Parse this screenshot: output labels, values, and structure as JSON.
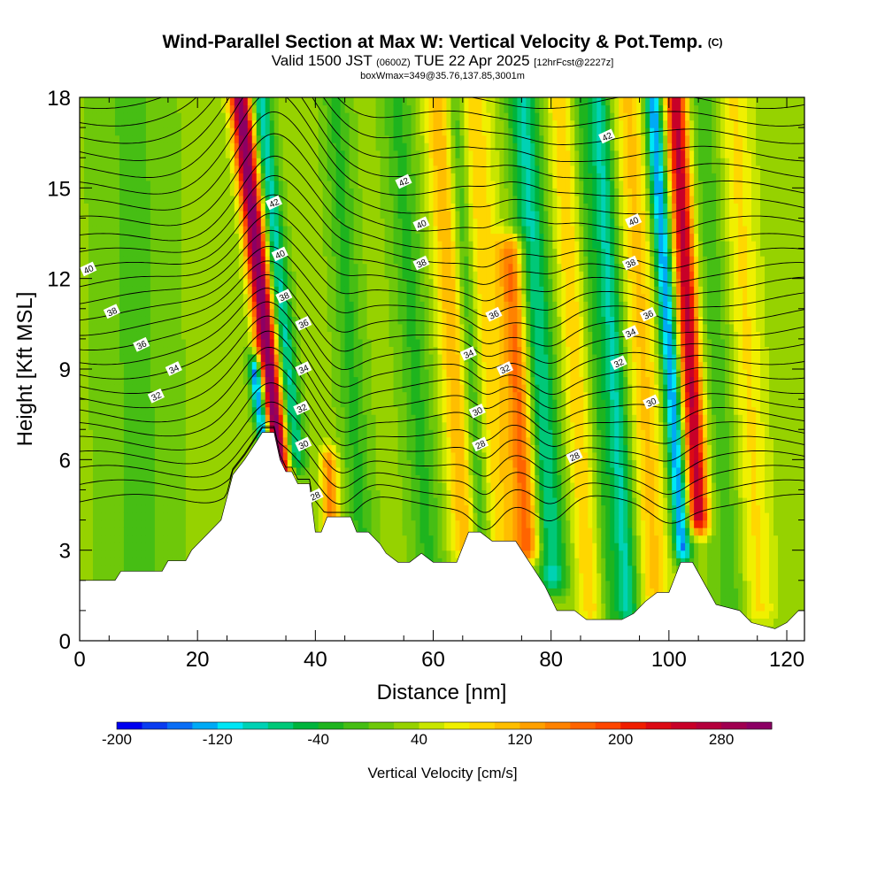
{
  "header": {
    "title": "Wind-Parallel Section at Max W: Vertical Velocity & Pot.Temp.",
    "copyright": "(C)",
    "valid_prefix": "Valid 1500 JST",
    "valid_utc": "(0600Z)",
    "valid_date": "TUE 22 Apr 2025",
    "forecast_info": "[12hrFcst@2227z]",
    "box_info": "boxWmax=349@35.76,137.85,3001m"
  },
  "colors": {
    "background": "#ffffff",
    "terrain": "#ffffff",
    "contour": "#000000"
  },
  "chart_data": {
    "type": "heatmap",
    "xlabel": "Distance [nm]",
    "ylabel": "Height [Kft MSL]",
    "xlim": [
      0,
      123
    ],
    "ylim": [
      0,
      18
    ],
    "x_ticks": [
      "0",
      "20",
      "40",
      "60",
      "80",
      "100",
      "120"
    ],
    "y_ticks": [
      "0",
      "3",
      "6",
      "9",
      "12",
      "15",
      "18"
    ],
    "colorbar": {
      "title": "Vertical Velocity [cm/s]",
      "tick_labels": [
        "-200",
        "-120",
        "-40",
        "40",
        "120",
        "200",
        "280"
      ],
      "levels": [
        -200,
        -180,
        -160,
        -140,
        -120,
        -100,
        -80,
        -60,
        -40,
        -20,
        0,
        20,
        40,
        60,
        80,
        100,
        120,
        140,
        160,
        180,
        200,
        220,
        240,
        260,
        280,
        300,
        320
      ],
      "colors": [
        "#0000f0",
        "#0a3cf0",
        "#0a6ef5",
        "#00aaf5",
        "#00e6f5",
        "#00d2b4",
        "#00c878",
        "#00b43c",
        "#1eb41e",
        "#46be14",
        "#6ec80a",
        "#96d200",
        "#c8e600",
        "#f0f000",
        "#ffd700",
        "#ffbe00",
        "#ffa000",
        "#ff8200",
        "#ff6400",
        "#ff4600",
        "#f01e00",
        "#dc0a14",
        "#c80028",
        "#b4003c",
        "#a00050",
        "#8c0064"
      ]
    },
    "terrain_height_kft": [
      [
        0,
        2
      ],
      [
        6,
        2
      ],
      [
        7,
        2.3
      ],
      [
        14,
        2.3
      ],
      [
        15,
        2.65
      ],
      [
        18,
        2.65
      ],
      [
        19,
        3
      ],
      [
        24,
        4
      ],
      [
        26,
        5.5
      ],
      [
        28,
        6
      ],
      [
        30,
        6.6
      ],
      [
        31,
        6.9
      ],
      [
        33,
        6.9
      ],
      [
        34,
        6
      ],
      [
        35,
        5.6
      ],
      [
        36,
        5.6
      ],
      [
        37,
        5.2
      ],
      [
        39,
        5.2
      ],
      [
        40,
        3.6
      ],
      [
        41,
        3.6
      ],
      [
        42,
        4.1
      ],
      [
        46,
        4.1
      ],
      [
        47,
        3.6
      ],
      [
        49,
        3.6
      ],
      [
        51,
        3.2
      ],
      [
        52,
        2.9
      ],
      [
        54,
        2.6
      ],
      [
        56,
        2.6
      ],
      [
        58,
        2.9
      ],
      [
        60,
        2.6
      ],
      [
        64,
        2.6
      ],
      [
        66,
        3.6
      ],
      [
        68,
        3.6
      ],
      [
        70,
        3.3
      ],
      [
        74,
        3.3
      ],
      [
        76,
        2.7
      ],
      [
        79,
        1.8
      ],
      [
        81,
        1
      ],
      [
        84,
        1
      ],
      [
        86,
        0.7
      ],
      [
        92,
        0.7
      ],
      [
        94,
        0.9
      ],
      [
        96,
        1.3
      ],
      [
        98,
        1.6
      ],
      [
        100,
        1.6
      ],
      [
        102,
        2.6
      ],
      [
        104,
        2.6
      ],
      [
        106,
        1.9
      ],
      [
        108,
        1.2
      ],
      [
        112,
        1
      ],
      [
        114,
        0.6
      ],
      [
        118,
        0.4
      ],
      [
        120,
        0.6
      ],
      [
        122,
        1
      ],
      [
        123,
        1
      ]
    ],
    "vertical_velocity_features": [
      {
        "x_center": 33.8,
        "tilt": 0.55,
        "width": 1.8,
        "value": 300,
        "y_min": 3,
        "y_max": 18
      },
      {
        "x_center": 31.8,
        "tilt": 0.65,
        "width": 1.1,
        "value": -220,
        "y_min": 6.3,
        "y_max": 9
      },
      {
        "x_center": 36.7,
        "tilt": 0.5,
        "width": 1.6,
        "value": -120,
        "y_min": 6,
        "y_max": 18
      },
      {
        "x_center": 42.3,
        "tilt": 0.2,
        "width": 1.5,
        "value": 120,
        "y_min": 3.5,
        "y_max": 6
      },
      {
        "x_center": 47,
        "tilt": 0.3,
        "width": 2.2,
        "value": -50,
        "y_min": 2.5,
        "y_max": 18
      },
      {
        "x_center": 58,
        "tilt": 0.35,
        "width": 2.5,
        "value": -50,
        "y_min": 2.5,
        "y_max": 18
      },
      {
        "x_center": 64.5,
        "tilt": 0.32,
        "width": 2.4,
        "value": 90,
        "y_min": 3,
        "y_max": 18
      },
      {
        "x_center": 67.3,
        "tilt": 0.3,
        "width": 1.5,
        "value": -70,
        "y_min": 3,
        "y_max": 18
      },
      {
        "x_center": 71,
        "tilt": 0.36,
        "width": 3,
        "value": 70,
        "y_min": 3,
        "y_max": 18
      },
      {
        "x_center": 75.3,
        "tilt": 0.3,
        "width": 2.2,
        "value": 140,
        "y_min": 3,
        "y_max": 13
      },
      {
        "x_center": 79,
        "tilt": 0.32,
        "width": 2.5,
        "value": -110,
        "y_min": 2,
        "y_max": 18
      },
      {
        "x_center": 85,
        "tilt": 0.3,
        "width": 2.2,
        "value": 70,
        "y_min": 1,
        "y_max": 18
      },
      {
        "x_center": 88.5,
        "tilt": 0.3,
        "width": 1.5,
        "value": -40,
        "y_min": 1,
        "y_max": 18
      },
      {
        "x_center": 91.5,
        "tilt": 0.3,
        "width": 2,
        "value": -110,
        "y_min": 1,
        "y_max": 18
      },
      {
        "x_center": 96.5,
        "tilt": 0.28,
        "width": 2.6,
        "value": 80,
        "y_min": 1,
        "y_max": 18
      },
      {
        "x_center": 101.3,
        "tilt": 0.34,
        "width": 1.5,
        "value": -170,
        "y_min": 3,
        "y_max": 18
      },
      {
        "x_center": 104.5,
        "tilt": 0.28,
        "width": 1.8,
        "value": 240,
        "y_min": 4,
        "y_max": 18
      },
      {
        "x_center": 109.5,
        "tilt": 0.3,
        "width": 2.8,
        "value": -40,
        "y_min": 1,
        "y_max": 18
      },
      {
        "x_center": 114,
        "tilt": 0.25,
        "width": 3,
        "value": 60,
        "y_min": 1,
        "y_max": 18
      },
      {
        "x_center": 10,
        "tilt": 0.1,
        "width": 6,
        "value": -30,
        "y_min": 2,
        "y_max": 18
      }
    ],
    "theta_contour_labels": [
      {
        "label": "40",
        "x": 1.5,
        "y": 12.3
      },
      {
        "label": "38",
        "x": 5.5,
        "y": 10.9
      },
      {
        "label": "36",
        "x": 10.5,
        "y": 9.8
      },
      {
        "label": "34",
        "x": 16,
        "y": 9
      },
      {
        "label": "32",
        "x": 13,
        "y": 8.1
      },
      {
        "label": "42",
        "x": 33,
        "y": 14.5
      },
      {
        "label": "40",
        "x": 34,
        "y": 12.8
      },
      {
        "label": "38",
        "x": 34.7,
        "y": 11.4
      },
      {
        "label": "36",
        "x": 38,
        "y": 10.5
      },
      {
        "label": "34",
        "x": 38,
        "y": 9
      },
      {
        "label": "32",
        "x": 37.7,
        "y": 7.7
      },
      {
        "label": "30",
        "x": 38,
        "y": 6.5
      },
      {
        "label": "28",
        "x": 40,
        "y": 4.8
      },
      {
        "label": "42",
        "x": 55,
        "y": 15.2
      },
      {
        "label": "40",
        "x": 58,
        "y": 13.8
      },
      {
        "label": "38",
        "x": 58,
        "y": 12.5
      },
      {
        "label": "36",
        "x": 70.3,
        "y": 10.8
      },
      {
        "label": "34",
        "x": 66,
        "y": 9.5
      },
      {
        "label": "32",
        "x": 72.2,
        "y": 9
      },
      {
        "label": "30",
        "x": 67.5,
        "y": 7.6
      },
      {
        "label": "28",
        "x": 68,
        "y": 6.5
      },
      {
        "label": "28",
        "x": 84,
        "y": 6.1
      },
      {
        "label": "42",
        "x": 89.5,
        "y": 16.7
      },
      {
        "label": "40",
        "x": 94,
        "y": 13.9
      },
      {
        "label": "38",
        "x": 93.5,
        "y": 12.5
      },
      {
        "label": "36",
        "x": 96.5,
        "y": 10.8
      },
      {
        "label": "34",
        "x": 93.5,
        "y": 10.2
      },
      {
        "label": "32",
        "x": 91.5,
        "y": 9.2
      },
      {
        "label": "30",
        "x": 97,
        "y": 7.9
      }
    ]
  }
}
